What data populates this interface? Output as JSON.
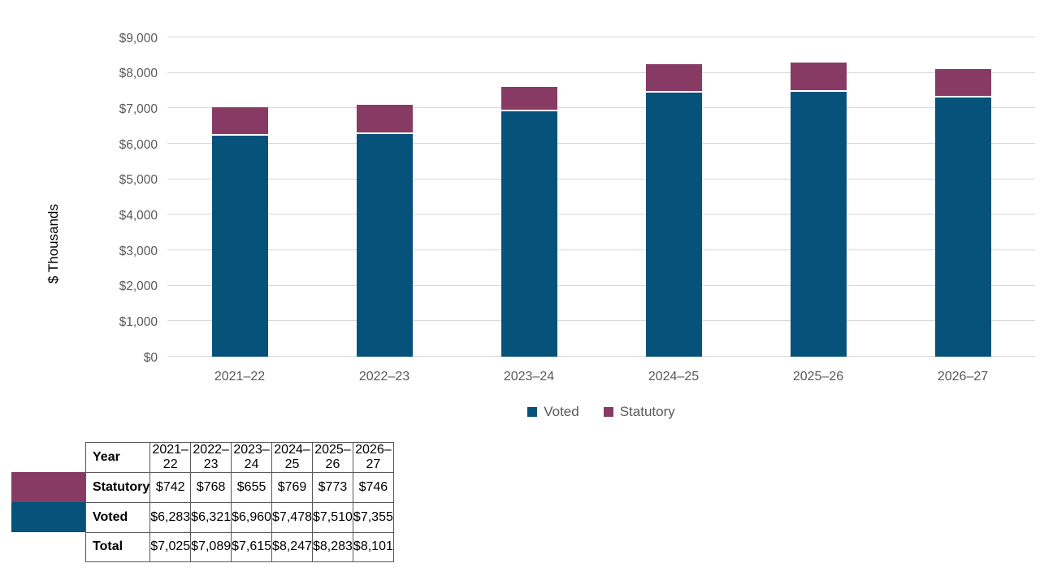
{
  "colors": {
    "voted": "#07527a",
    "statutory": "#873b64",
    "gridline": "#d9d9d9",
    "axis_text": "#595959",
    "table_border": "#595959"
  },
  "chart_data": {
    "type": "bar",
    "stacked": true,
    "title": "",
    "ylabel": "$ Thousands",
    "xlabel": "",
    "ylim": [
      0,
      9000
    ],
    "ytick_step": 1000,
    "ytick_labels": [
      "$0",
      "$1,000",
      "$2,000",
      "$3,000",
      "$4,000",
      "$5,000",
      "$6,000",
      "$7,000",
      "$8,000",
      "$9,000"
    ],
    "grid": true,
    "legend_position": "bottom",
    "categories": [
      "2021–22",
      "2022–23",
      "2023–24",
      "2024–25",
      "2025–26",
      "2026–27"
    ],
    "series": [
      {
        "name": "Voted",
        "color": "#07527a",
        "values": [
          6283,
          6321,
          6960,
          7478,
          7510,
          7355
        ]
      },
      {
        "name": "Statutory",
        "color": "#873b64",
        "values": [
          742,
          768,
          655,
          769,
          773,
          746
        ]
      }
    ],
    "totals": [
      7025,
      7089,
      7615,
      8247,
      8283,
      8101
    ]
  },
  "legend": {
    "items": [
      {
        "label": "Voted",
        "color": "#07527a"
      },
      {
        "label": "Statutory",
        "color": "#873b64"
      }
    ]
  },
  "table": {
    "header": {
      "label": "Year",
      "values": [
        "2021–22",
        "2022–23",
        "2023–24",
        "2024–25",
        "2025–26",
        "2026–27"
      ]
    },
    "rows": [
      {
        "label": "Statutory",
        "swatch": "#873b64",
        "values": [
          "$742",
          "$768",
          "$655",
          "$769",
          "$773",
          "$746"
        ]
      },
      {
        "label": "Voted",
        "swatch": "#07527a",
        "values": [
          "$6,283",
          "$6,321",
          "$6,960",
          "$7,478",
          "$7,510",
          "$7,355"
        ]
      },
      {
        "label": "Total",
        "swatch": null,
        "values": [
          "$7,025",
          "$7,089",
          "$7,615",
          "$8,247",
          "$8,283",
          "$8,101"
        ]
      }
    ]
  }
}
